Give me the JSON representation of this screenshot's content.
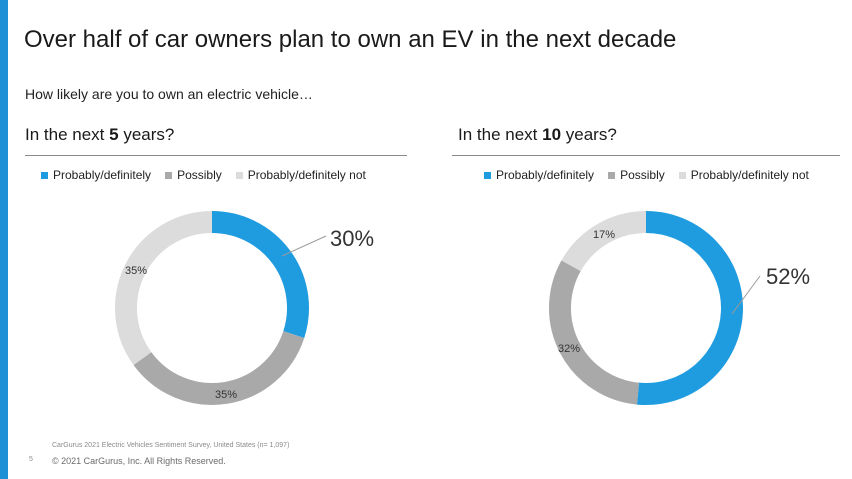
{
  "slide": {
    "title": "Over half of car owners plan to own an EV in the next decade",
    "subtitle": "How likely are you to own an electric vehicle…",
    "footer_source": "CarGurus 2021 Electric Vehicles Sentiment Survey, United States (n= 1,097)",
    "footer_page": "5",
    "footer_copyright": "© 2021 CarGurus, Inc.  All Rights Reserved.",
    "accent_color": "#1f8fd6"
  },
  "panels": [
    {
      "heading_prefix": "In the next ",
      "heading_bold": "5",
      "heading_suffix": " years?",
      "legend": [
        "Probably/definitely",
        "Possibly",
        "Probably/definitely not"
      ]
    },
    {
      "heading_prefix": "In the next ",
      "heading_bold": "10",
      "heading_suffix": " years?",
      "legend": [
        "Probably/definitely",
        "Possibly",
        "Probably/definitely not"
      ]
    }
  ],
  "chart_data": [
    {
      "type": "pie",
      "style": "donut",
      "title": "In the next 5 years?",
      "categories": [
        "Probably/definitely",
        "Possibly",
        "Probably/definitely not"
      ],
      "values": [
        30,
        35,
        35
      ],
      "labels": [
        "30%",
        "35%",
        "35%"
      ],
      "colors": [
        "#1f9ce0",
        "#a9a9a9",
        "#dcdcdc"
      ],
      "legend": "top"
    },
    {
      "type": "pie",
      "style": "donut",
      "title": "In the next 10 years?",
      "categories": [
        "Probably/definitely",
        "Possibly",
        "Probably/definitely not"
      ],
      "values": [
        52,
        32,
        17
      ],
      "labels": [
        "52%",
        "32%",
        "17%"
      ],
      "colors": [
        "#1f9ce0",
        "#a9a9a9",
        "#dcdcdc"
      ],
      "legend": "top"
    }
  ]
}
